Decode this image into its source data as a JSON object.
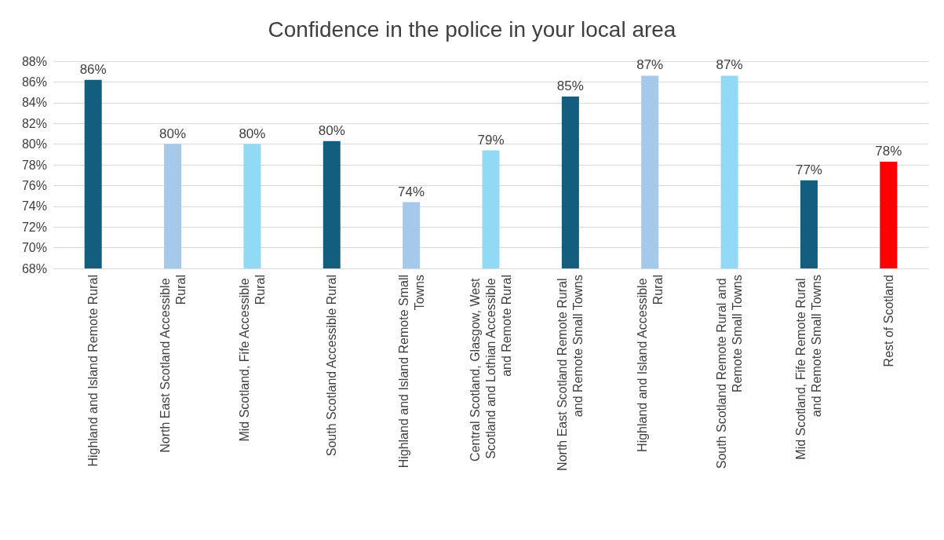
{
  "chart_data": {
    "type": "bar",
    "title": "Confidence in the police in your local area",
    "categories": [
      "Highland and Island Remote Rural",
      "North East Scotland Accessible Rural",
      "Mid Scotland, Fife Accessible Rural",
      "South Scotland Accessible Rural",
      "Highland and Island Remote Small Towns",
      "Central Scotland, Glasgow, West Scotland and Lothian Accessible and Remote Rural",
      "North East Scotland Remote Rural and Remote Small Towns",
      "Highland and Island Accessible Rural",
      "South Scotland Remote Rural and Remote Small Towns",
      "Mid Scotland, Fife Remote Rural and Remote Small Towns",
      "Rest of Scotland"
    ],
    "values": [
      86.2,
      80.0,
      80.0,
      80.3,
      74.4,
      79.4,
      84.6,
      86.6,
      86.6,
      76.5,
      78.3
    ],
    "value_labels": [
      "86%",
      "80%",
      "80%",
      "80%",
      "74%",
      "79%",
      "85%",
      "87%",
      "87%",
      "77%",
      "78%"
    ],
    "colors": [
      "#135e7f",
      "#a6c8ea",
      "#91d9f5",
      "#135e7f",
      "#a6c8ea",
      "#91d9f5",
      "#135e7f",
      "#a6c8ea",
      "#91d9f5",
      "#135e7f",
      "#ff0000"
    ],
    "ylim": [
      68,
      88
    ],
    "yticks": [
      {
        "value": 68,
        "label": "68%"
      },
      {
        "value": 70,
        "label": "70%"
      },
      {
        "value": 72,
        "label": "72%"
      },
      {
        "value": 74,
        "label": "74%"
      },
      {
        "value": 76,
        "label": "76%"
      },
      {
        "value": 78,
        "label": "78%"
      },
      {
        "value": 80,
        "label": "80%"
      },
      {
        "value": 82,
        "label": "82%"
      },
      {
        "value": 84,
        "label": "84%"
      },
      {
        "value": 86,
        "label": "86%"
      },
      {
        "value": 88,
        "label": "88%"
      }
    ],
    "grid": "y"
  }
}
